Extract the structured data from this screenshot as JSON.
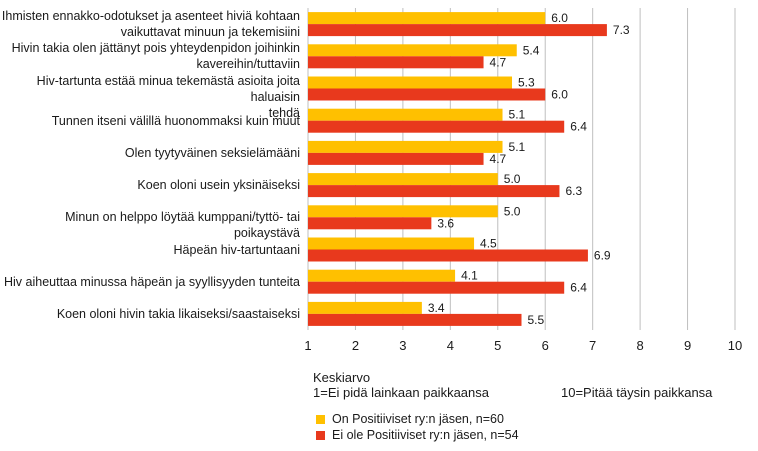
{
  "chart_data": {
    "type": "bar",
    "orientation": "horizontal",
    "categories": [
      "Ihmisten ennakko-odotukset ja asenteet hiviä kohtaan vaikuttavat minuun ja tekemisiini",
      "Hivin takia olen jättänyt pois yhteydenpidon joihinkin kavereihin/tuttaviin",
      "Hiv-tartunta estää minua tekemästä asioita joita haluaisin tehdä",
      "Tunnen itseni välillä huonommaksi kuin muut",
      "Olen tyytyväinen seksielämääni",
      "Koen oloni usein yksinäiseksi",
      "Minun on helppo löytää kumppani/tyttö- tai poikaystävä",
      "Häpeän hiv-tartuntaani",
      "Hiv aiheuttaa minussa häpeän ja syyllisyyden tunteita",
      "Koen oloni hivin takia likaiseksi/saastaiseksi"
    ],
    "category_lines": [
      [
        "Ihmisten ennakko-odotukset ja asenteet hiviä kohtaan",
        "vaikuttavat minuun ja tekemisiini"
      ],
      [
        "Hivin takia olen jättänyt pois yhteydenpidon joihinkin",
        "kavereihin/tuttaviin"
      ],
      [
        "Hiv-tartunta estää minua tekemästä asioita joita haluaisin",
        "tehdä"
      ],
      [
        "Tunnen itseni välillä huonommaksi kuin muut"
      ],
      [
        "Olen tyytyväinen seksielämääni"
      ],
      [
        "Koen oloni usein yksinäiseksi"
      ],
      [
        "Minun on helppo löytää kumppani/tyttö- tai poikaystävä"
      ],
      [
        "Häpeän hiv-tartuntaani"
      ],
      [
        "Hiv aiheuttaa minussa häpeän ja syyllisyyden tunteita"
      ],
      [
        "Koen oloni hivin takia likaiseksi/saastaiseksi"
      ]
    ],
    "series": [
      {
        "name": "On Positiiviset ry:n jäsen, n=60",
        "color": "#FFC000",
        "values": [
          6.0,
          5.4,
          5.3,
          5.1,
          5.1,
          5.0,
          5.0,
          4.5,
          4.1,
          3.4
        ],
        "labels": [
          "6.0",
          "5.4",
          "5.3",
          "5.1",
          "5.1",
          "5.0",
          "5.0",
          "4.5",
          "4.1",
          "3.4"
        ]
      },
      {
        "name": "Ei ole Positiiviset ry:n jäsen, n=54",
        "color": "#E8391D",
        "values": [
          7.3,
          4.7,
          6.0,
          6.4,
          4.7,
          6.3,
          3.6,
          6.9,
          6.4,
          5.5
        ],
        "labels": [
          "7.3",
          "4.7",
          "6.0",
          "6.4",
          "4.7",
          "6.3",
          "3.6",
          "6.9",
          "6.4",
          "5.5"
        ]
      }
    ],
    "xlim": [
      1,
      10
    ],
    "xticks": [
      1,
      2,
      3,
      4,
      5,
      6,
      7,
      8,
      9,
      10
    ],
    "xtick_labels": [
      "1",
      "2",
      "3",
      "4",
      "5",
      "6",
      "7",
      "8",
      "9",
      "10"
    ],
    "xlabel": "Keskiarvo",
    "scale_min_label": "1=Ei pidä lainkaan paikkaansa",
    "scale_max_label": "10=Pitää täysin paikkansa",
    "grid": "vertical",
    "gridline_color": "#bfbfbf",
    "legend_position": "bottom-left"
  }
}
